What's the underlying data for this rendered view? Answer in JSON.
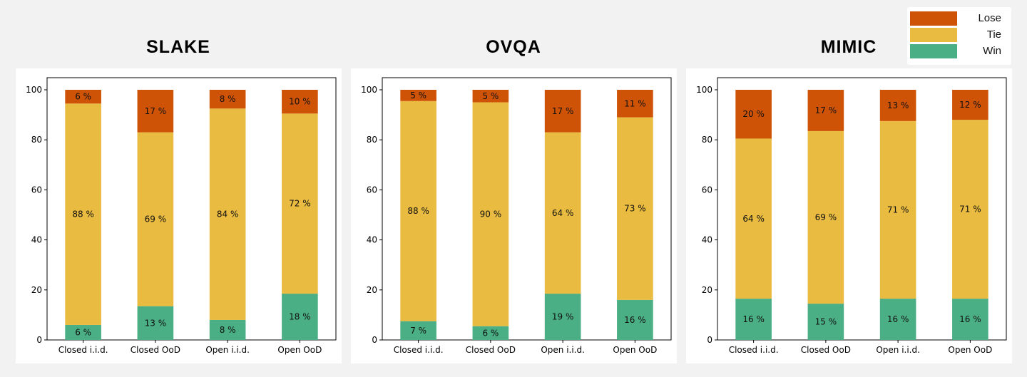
{
  "legend": {
    "items": [
      {
        "label": "Lose",
        "color": "#cf5306"
      },
      {
        "label": "Tie",
        "color": "#e9bb40"
      },
      {
        "label": "Win",
        "color": "#4baf85"
      }
    ]
  },
  "chart_data": [
    {
      "type": "bar",
      "stacked": true,
      "title": "SLAKE",
      "categories": [
        "Closed i.i.d.",
        "Closed OoD",
        "Open i.i.d.",
        "Open OoD"
      ],
      "ylim": [
        0,
        100
      ],
      "yticks": [
        "0",
        "20",
        "40",
        "60",
        "80",
        "100"
      ],
      "series": [
        {
          "name": "Win",
          "values": [
            6,
            13.5,
            8,
            18.5
          ],
          "labels": [
            "6 %",
            "13 %",
            "8 %",
            "18 %"
          ]
        },
        {
          "name": "Tie",
          "values": [
            88.5,
            69.5,
            84.5,
            72
          ],
          "labels": [
            "88 %",
            "69 %",
            "84 %",
            "72 %"
          ]
        },
        {
          "name": "Lose",
          "values": [
            5.5,
            17,
            7.5,
            9.5
          ],
          "labels": [
            "6 %",
            "17 %",
            "8 %",
            "10 %"
          ]
        }
      ]
    },
    {
      "type": "bar",
      "stacked": true,
      "title": "OVQA",
      "categories": [
        "Closed i.i.d.",
        "Closed OoD",
        "Open i.i.d.",
        "Open OoD"
      ],
      "ylim": [
        0,
        100
      ],
      "yticks": [
        "0",
        "20",
        "40",
        "60",
        "80",
        "100"
      ],
      "series": [
        {
          "name": "Win",
          "values": [
            7.5,
            5.5,
            18.5,
            16
          ],
          "labels": [
            "7 %",
            "6 %",
            "19 %",
            "16 %"
          ]
        },
        {
          "name": "Tie",
          "values": [
            88,
            89.5,
            64.5,
            73
          ],
          "labels": [
            "88 %",
            "90 %",
            "64 %",
            "73 %"
          ]
        },
        {
          "name": "Lose",
          "values": [
            4.5,
            5,
            17,
            11
          ],
          "labels": [
            "5 %",
            "5 %",
            "17 %",
            "11 %"
          ]
        }
      ]
    },
    {
      "type": "bar",
      "stacked": true,
      "title": "MIMIC",
      "categories": [
        "Closed i.i.d.",
        "Closed OoD",
        "Open i.i.d.",
        "Open OoD"
      ],
      "ylim": [
        0,
        100
      ],
      "yticks": [
        "0",
        "20",
        "40",
        "60",
        "80",
        "100"
      ],
      "series": [
        {
          "name": "Win",
          "values": [
            16.5,
            14.5,
            16.5,
            16.5
          ],
          "labels": [
            "16 %",
            "15 %",
            "16 %",
            "16 %"
          ]
        },
        {
          "name": "Tie",
          "values": [
            64,
            69,
            71,
            71.5
          ],
          "labels": [
            "64 %",
            "69 %",
            "71 %",
            "71 %"
          ]
        },
        {
          "name": "Lose",
          "values": [
            19.5,
            16.5,
            12.5,
            12
          ],
          "labels": [
            "20 %",
            "17 %",
            "13 %",
            "12 %"
          ]
        }
      ]
    }
  ]
}
